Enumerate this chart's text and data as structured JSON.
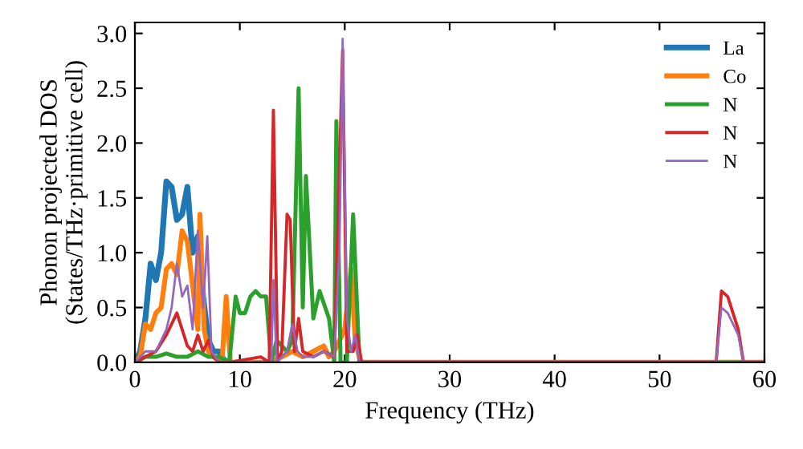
{
  "chart_data": {
    "type": "line",
    "xlabel": "Frequency (THz)",
    "ylabel": "Phonon projected DOS\n(States/THz·primitive cell)",
    "xlim": [
      0,
      60
    ],
    "ylim": [
      0,
      3.1
    ],
    "xticks": [
      0,
      10,
      20,
      30,
      40,
      50,
      60
    ],
    "yticks": [
      {
        "value": 0,
        "label": "0.0"
      },
      0.5,
      {
        "value": 1,
        "label": "1.0"
      },
      1.5,
      {
        "value": 2,
        "label": "2.0"
      },
      2.5,
      {
        "value": 3,
        "label": "3.0"
      }
    ],
    "grid": false,
    "legend": "top right",
    "marker": "none",
    "line_style": "solid",
    "series": [
      {
        "name": "La",
        "color": "#1f77b4",
        "x": [
          0,
          0.5,
          1,
          1.5,
          2,
          2.5,
          3,
          3.5,
          4,
          4.5,
          5,
          5.5,
          6,
          6.5,
          7,
          7.5,
          8,
          8.5,
          9
        ],
        "values": [
          0,
          0.1,
          0.4,
          0.9,
          0.75,
          1.0,
          1.65,
          1.6,
          1.3,
          1.35,
          1.6,
          1.0,
          1.15,
          0.6,
          0.2,
          0.1,
          0.1,
          0.02,
          0
        ]
      },
      {
        "name": "Co",
        "color": "#ff7f0e",
        "x": [
          0,
          0.5,
          1,
          1.5,
          2,
          2.5,
          3,
          3.5,
          4,
          4.5,
          5,
          5.5,
          6,
          6.2,
          6.6,
          7,
          7.5,
          8.3,
          8.7,
          9.1,
          13,
          14,
          15,
          16,
          17,
          18,
          18.5,
          19,
          20,
          20.6,
          21,
          21.5,
          60
        ],
        "values": [
          0,
          0.05,
          0.35,
          0.3,
          0.45,
          0.5,
          0.85,
          0.9,
          0.8,
          1.2,
          1.1,
          0.7,
          0.3,
          1.35,
          0.3,
          0.1,
          0.05,
          0,
          0.6,
          0,
          0,
          0.05,
          0.1,
          0.05,
          0.1,
          0.15,
          0.05,
          0.1,
          0.3,
          0.85,
          0.2,
          0,
          0
        ]
      },
      {
        "name": "N",
        "color": "#2ca02c",
        "x": [
          0,
          1,
          2,
          3,
          4,
          5,
          6,
          7,
          8,
          9,
          9.6,
          10,
          10.5,
          11,
          11.5,
          12,
          12.5,
          13,
          13.5,
          14.5,
          15,
          15.6,
          16,
          16.3,
          17,
          17.6,
          18.5,
          19,
          19.2,
          19.6,
          20.2,
          20.8,
          21.4,
          60
        ],
        "values": [
          0,
          0.05,
          0.05,
          0.08,
          0.05,
          0.05,
          0.1,
          0.05,
          0.05,
          0,
          0.6,
          0.45,
          0.45,
          0.6,
          0.65,
          0.6,
          0.6,
          0,
          0.2,
          0.1,
          0.2,
          2.5,
          0.5,
          1.7,
          0.4,
          0.65,
          0.4,
          0,
          2.2,
          0,
          0,
          1.35,
          0,
          0
        ]
      },
      {
        "name": "N",
        "color": "#d62728",
        "x": [
          0,
          1,
          2,
          3,
          3.5,
          4,
          4.5,
          5,
          5.5,
          6,
          6.5,
          7,
          7.5,
          8,
          9,
          12,
          12.8,
          13.2,
          13.6,
          14,
          14.5,
          14.8,
          15.2,
          15.6,
          16,
          17,
          18,
          19,
          19.8,
          20.2,
          20.8,
          21.2,
          21.6,
          55,
          55.4,
          55.9,
          56.5,
          57.5,
          58,
          60
        ],
        "values": [
          0,
          0.05,
          0.1,
          0.25,
          0.35,
          0.45,
          0.3,
          0.15,
          0.1,
          0.25,
          0.1,
          0.2,
          0.05,
          0,
          0,
          0.05,
          0,
          2.3,
          0,
          0.1,
          1.35,
          1.3,
          0.1,
          0.4,
          0.1,
          0.05,
          0.1,
          0.05,
          2.85,
          0.1,
          0.1,
          0.25,
          0,
          0,
          0,
          0.65,
          0.6,
          0.3,
          0,
          0
        ]
      },
      {
        "name": "N",
        "color": "#9467bd",
        "x": [
          0,
          1,
          2,
          3,
          3.5,
          4,
          4.5,
          5,
          5.5,
          6,
          6.5,
          6.9,
          7.3,
          8,
          13,
          13.2,
          13.5,
          14.5,
          15,
          15.5,
          16,
          17,
          18,
          19,
          19.5,
          19.8,
          20.2,
          20.6,
          21,
          21.4,
          55,
          55.4,
          55.9,
          56.5,
          57.5,
          58,
          60
        ],
        "values": [
          0,
          0.1,
          0.1,
          0.3,
          0.5,
          0.9,
          0.6,
          0.7,
          0.3,
          1.2,
          0.5,
          1.15,
          0.1,
          0,
          0,
          0.75,
          0,
          0.1,
          0.35,
          0.1,
          0.05,
          0.05,
          0.1,
          0.05,
          1.05,
          2.95,
          0.4,
          0.1,
          0.25,
          0,
          0,
          0,
          0.5,
          0.45,
          0.25,
          0,
          0
        ]
      }
    ]
  }
}
